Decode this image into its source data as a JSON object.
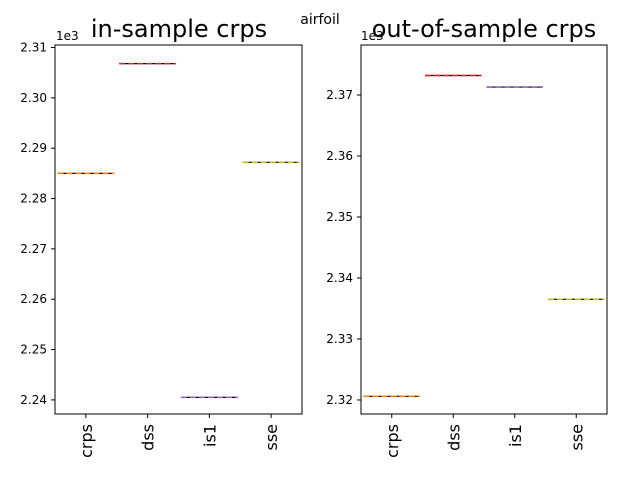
{
  "suptitle": "airfoil",
  "chart_data": [
    {
      "type": "box",
      "title": "in-sample crps",
      "categories": [
        "crps",
        "dss",
        "is1",
        "sse"
      ],
      "values": [
        2285.0,
        2306.8,
        2240.5,
        2287.2
      ],
      "ylim": [
        2237.2,
        2310.5
      ],
      "yticks": [
        2240,
        2250,
        2260,
        2270,
        2280,
        2290,
        2300,
        2310
      ],
      "ytick_labels": [
        "2.24",
        "2.25",
        "2.26",
        "2.27",
        "2.28",
        "2.29",
        "2.30",
        "2.31"
      ],
      "y_offset_label": "1e3",
      "colors": [
        "#ff7f0e",
        "#d62728",
        "#9467bd",
        "#bcbd22"
      ]
    },
    {
      "type": "box",
      "title": "out-of-sample crps",
      "categories": [
        "crps",
        "dss",
        "is1",
        "sse"
      ],
      "values": [
        2320.6,
        2373.2,
        2371.3,
        2336.5
      ],
      "ylim": [
        2317.7,
        2378.2
      ],
      "yticks": [
        2320,
        2330,
        2340,
        2350,
        2360,
        2370
      ],
      "ytick_labels": [
        "2.32",
        "2.33",
        "2.34",
        "2.35",
        "2.36",
        "2.37"
      ],
      "y_offset_label": "1e3",
      "colors": [
        "#ff7f0e",
        "#d62728",
        "#9467bd",
        "#bcbd22"
      ]
    }
  ]
}
